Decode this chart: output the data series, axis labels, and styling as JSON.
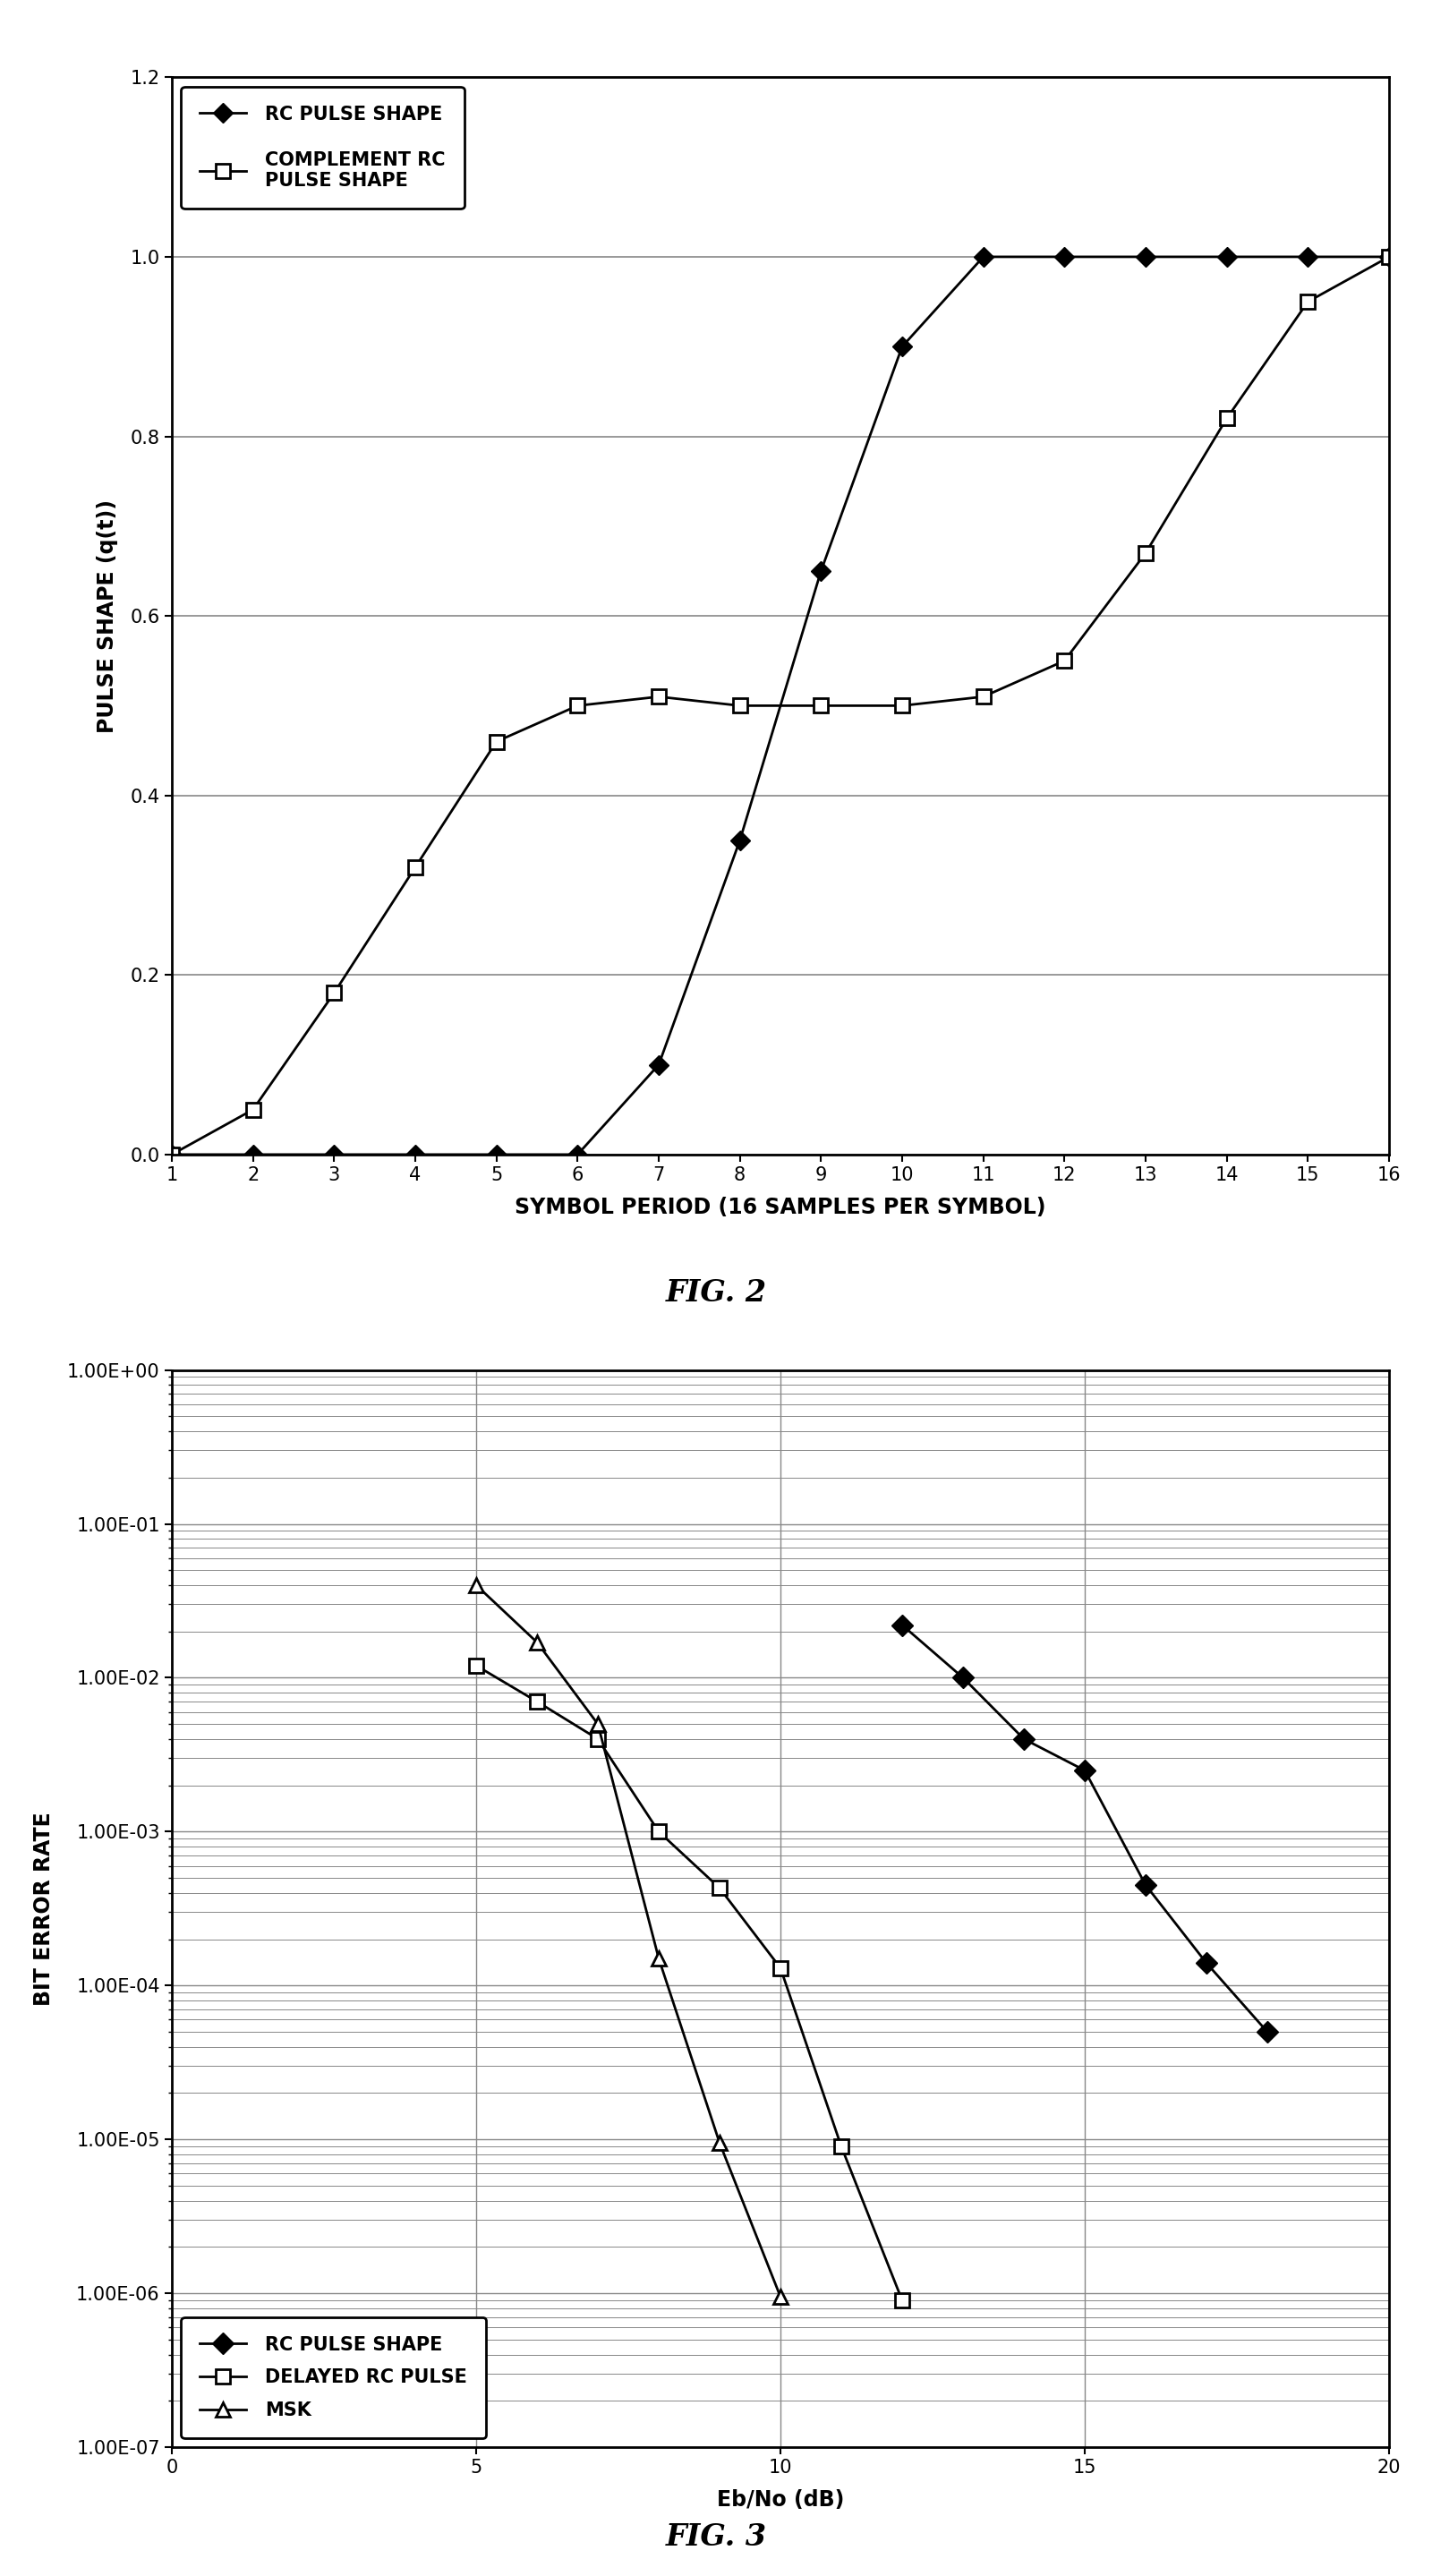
{
  "fig2": {
    "title": "FIG. 2",
    "xlabel": "SYMBOL PERIOD (16 SAMPLES PER SYMBOL)",
    "ylabel": "PULSE SHAPE (q(t))",
    "xlim": [
      1,
      16
    ],
    "ylim": [
      0,
      1.2
    ],
    "yticks": [
      0,
      0.2,
      0.4,
      0.6,
      0.8,
      1.0,
      1.2
    ],
    "xticks": [
      1,
      2,
      3,
      4,
      5,
      6,
      7,
      8,
      9,
      10,
      11,
      12,
      13,
      14,
      15,
      16
    ],
    "rc_x": [
      1,
      2,
      3,
      4,
      5,
      6,
      7,
      8,
      9,
      10,
      11,
      12,
      13,
      14,
      15,
      16
    ],
    "rc_y": [
      0,
      0,
      0,
      0,
      0,
      0,
      0.1,
      0.35,
      0.65,
      0.9,
      1.0,
      1.0,
      1.0,
      1.0,
      1.0,
      1.0
    ],
    "comp_x": [
      1,
      2,
      3,
      4,
      5,
      6,
      7,
      8,
      9,
      10,
      11,
      12,
      13,
      14,
      15,
      16
    ],
    "comp_y": [
      0,
      0.05,
      0.18,
      0.32,
      0.46,
      0.5,
      0.51,
      0.5,
      0.5,
      0.5,
      0.51,
      0.55,
      0.67,
      0.82,
      0.95,
      1.0
    ],
    "legend1": "RC PULSE SHAPE",
    "legend2": "COMPLEMENT RC\nPULSE SHAPE",
    "rc_color": "#000000",
    "comp_color": "#000000",
    "bg_color": "#ffffff",
    "grid_color": "#888888"
  },
  "fig3": {
    "title": "FIG. 3",
    "xlabel": "Eb/No (dB)",
    "ylabel": "BIT ERROR RATE",
    "xlim": [
      0,
      20
    ],
    "ylim_log": [
      -7,
      0
    ],
    "xticks": [
      0,
      5,
      10,
      15,
      20
    ],
    "rc_x": [
      12,
      13,
      14,
      15,
      16,
      17,
      18
    ],
    "rc_y": [
      0.022,
      0.01,
      0.004,
      0.0025,
      0.00045,
      0.00014,
      5e-05
    ],
    "delayed_x": [
      5,
      6,
      7,
      8,
      9,
      10,
      11,
      12
    ],
    "delayed_y": [
      0.012,
      0.007,
      0.004,
      0.001,
      0.00043,
      0.00013,
      9e-06,
      9e-07
    ],
    "msk_x": [
      5,
      6,
      7,
      8,
      9,
      10
    ],
    "msk_y": [
      0.04,
      0.017,
      0.005,
      0.00015,
      9.5e-06,
      9.5e-07
    ],
    "legend1": "RC PULSE SHAPE",
    "legend2": "DELAYED RC PULSE",
    "legend3": "MSK",
    "bg_color": "#ffffff",
    "grid_color": "#888888"
  }
}
